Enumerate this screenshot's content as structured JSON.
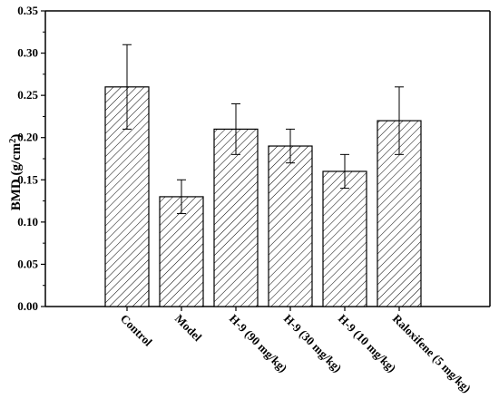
{
  "chart_data": {
    "type": "bar",
    "title": "",
    "xlabel": "",
    "ylabel": "BMD",
    "ylabel_unit": "g/cm",
    "ylabel_unit_sup": "2",
    "ylim": [
      0,
      0.35
    ],
    "y_ticks": [
      "0.00",
      "0.05",
      "0.10",
      "0.15",
      "0.20",
      "0.25",
      "0.30",
      "0.35"
    ],
    "categories": [
      "Control",
      "Model",
      "H-9 (90 mg/kg)",
      "H-9 (30 mg/kg)",
      "H-9 (10 mg/kg)",
      "Raloxifene (5 mg/kg)"
    ],
    "values": [
      0.26,
      0.13,
      0.21,
      0.19,
      0.16,
      0.22
    ],
    "errors": [
      0.05,
      0.02,
      0.03,
      0.02,
      0.02,
      0.04
    ],
    "bar_fill": "hatched",
    "grid": false,
    "legend": "none"
  }
}
